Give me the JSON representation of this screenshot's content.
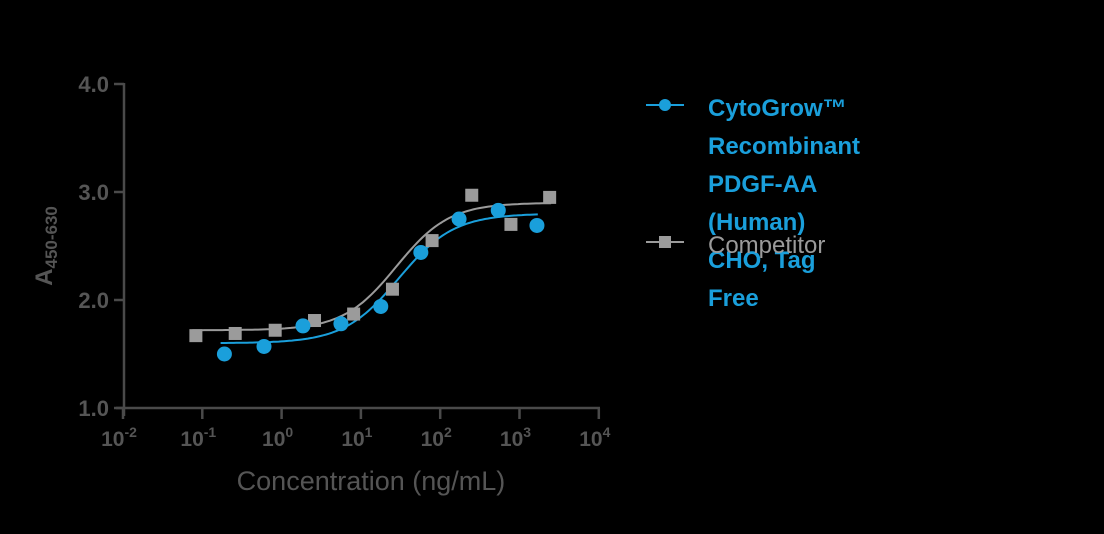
{
  "chart_data": {
    "type": "scatter",
    "title": "",
    "xlabel": "Concentration (ng/mL)",
    "ylabel": "A450-630",
    "ylabel_main": "A",
    "ylabel_sub": "450-630",
    "xscale": "log",
    "xlim": [
      0.01,
      10000
    ],
    "ylim": [
      1.0,
      4.0
    ],
    "grid": false,
    "legend_position": "right",
    "x_ticks": [
      {
        "base": "10",
        "exp": "-2",
        "value": 0.01
      },
      {
        "base": "10",
        "exp": "-1",
        "value": 0.1
      },
      {
        "base": "10",
        "exp": "0",
        "value": 1
      },
      {
        "base": "10",
        "exp": "1",
        "value": 10
      },
      {
        "base": "10",
        "exp": "2",
        "value": 100
      },
      {
        "base": "10",
        "exp": "3",
        "value": 1000
      },
      {
        "base": "10",
        "exp": "4",
        "value": 10000
      }
    ],
    "y_ticks": [
      "1.0",
      "2.0",
      "3.0",
      "4.0"
    ],
    "series": [
      {
        "name": "CytoGrow™ Recombinant PDGF-AA (Human) CHO, Tag Free",
        "legend_label": "CytoGrow™ Recombinant\nPDGF-AA (Human)\nCHO, Tag Free",
        "marker": "circle",
        "color": "#1a9fdb",
        "x": [
          0.19,
          0.6,
          1.86,
          5.6,
          17.8,
          57,
          173,
          540,
          1660
        ],
        "y": [
          1.5,
          1.57,
          1.76,
          1.78,
          1.94,
          2.44,
          2.75,
          2.83,
          2.69
        ],
        "fit": {
          "bottom": 1.6,
          "top": 2.8,
          "ec50": 30,
          "hill": 1.25
        }
      },
      {
        "name": "Competitor",
        "legend_label": "Competitor",
        "marker": "square",
        "color": "#9b9b9b",
        "x": [
          0.083,
          0.26,
          0.83,
          2.6,
          8.1,
          25,
          79,
          250,
          780,
          2400
        ],
        "y": [
          1.67,
          1.69,
          1.72,
          1.81,
          1.87,
          2.1,
          2.55,
          2.97,
          2.7,
          2.95
        ],
        "fit": {
          "bottom": 1.72,
          "top": 2.9,
          "ec50": 28,
          "hill": 1.3
        }
      }
    ]
  },
  "colors": {
    "axis": "#4a4a4a",
    "tick_label": "#555555",
    "axis_title": "#555555",
    "background": "#000000"
  }
}
